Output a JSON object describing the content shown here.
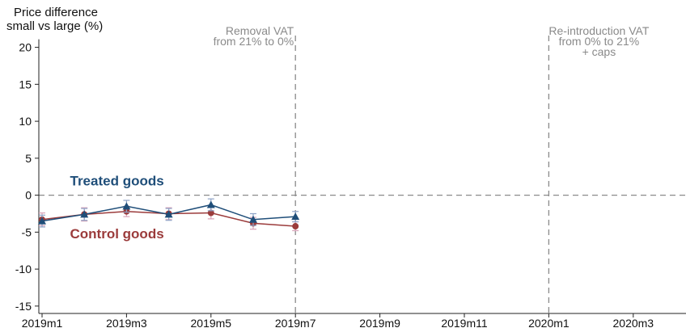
{
  "chart_data": {
    "type": "line",
    "ylabel_lines": [
      "Price difference",
      "small vs large (%)"
    ],
    "ylim": [
      -16,
      24
    ],
    "yticks": [
      -15,
      -10,
      -5,
      0,
      5,
      10,
      15,
      20
    ],
    "ytick_labels": [
      "-15",
      "-10",
      "-5",
      "0",
      "5",
      "10",
      "15",
      "20"
    ],
    "xlim": [
      0,
      15.5
    ],
    "xticks": [
      0,
      2,
      4,
      6,
      8,
      10,
      12,
      14
    ],
    "xtick_labels": [
      "2019m1",
      "2019m3",
      "2019m5",
      "2019m7",
      "2019m9",
      "2019m11",
      "2020m1",
      "2020m3"
    ],
    "x_categories": [
      "2019m1",
      "2019m2",
      "2019m3",
      "2019m4",
      "2019m5",
      "2019m6",
      "2019m7"
    ],
    "reference_hline": 0,
    "vlines": [
      {
        "x": 6,
        "label_lines": [
          "Removal VAT",
          "from 21% to 0%"
        ]
      },
      {
        "x": 12,
        "label_lines": [
          "Re-introduction VAT",
          "from 0% to 21%",
          "+ caps"
        ]
      }
    ],
    "series": [
      {
        "name": "Treated goods",
        "marker": "triangle",
        "color": "#1f4e79",
        "ci_color": "#8fa3c7",
        "x": [
          0,
          1,
          2,
          3,
          4,
          5,
          6
        ],
        "values": [
          -3.5,
          -2.6,
          -1.5,
          -2.6,
          -1.3,
          -3.3,
          -2.9
        ],
        "ci_low": [
          -4.3,
          -3.4,
          -2.3,
          -3.4,
          -2.1,
          -4.1,
          -3.6
        ],
        "ci_high": [
          -2.7,
          -1.8,
          -0.7,
          -1.8,
          -0.5,
          -2.5,
          -2.2
        ]
      },
      {
        "name": "Control goods",
        "marker": "circle",
        "color": "#9b3b3b",
        "ci_color": "#d9a3b8",
        "x": [
          0,
          1,
          2,
          3,
          4,
          5,
          6
        ],
        "values": [
          -3.3,
          -2.6,
          -2.2,
          -2.5,
          -2.4,
          -3.8,
          -4.2
        ],
        "ci_low": [
          -4.1,
          -3.5,
          -2.9,
          -3.3,
          -3.2,
          -4.6,
          -4.8
        ],
        "ci_high": [
          -2.4,
          -1.7,
          -1.5,
          -1.7,
          -1.6,
          -3.0,
          -3.6
        ]
      }
    ],
    "series_labels": [
      {
        "text": "Treated goods",
        "anchor_x": 3,
        "anchor_y": 2,
        "color": "#1f4e79"
      },
      {
        "text": "Control goods",
        "anchor_x": 3,
        "anchor_y": -5.2,
        "color": "#9b3b3b"
      }
    ],
    "colors": {
      "axis": "#222222",
      "reference_line": "#8a8a8a"
    }
  }
}
